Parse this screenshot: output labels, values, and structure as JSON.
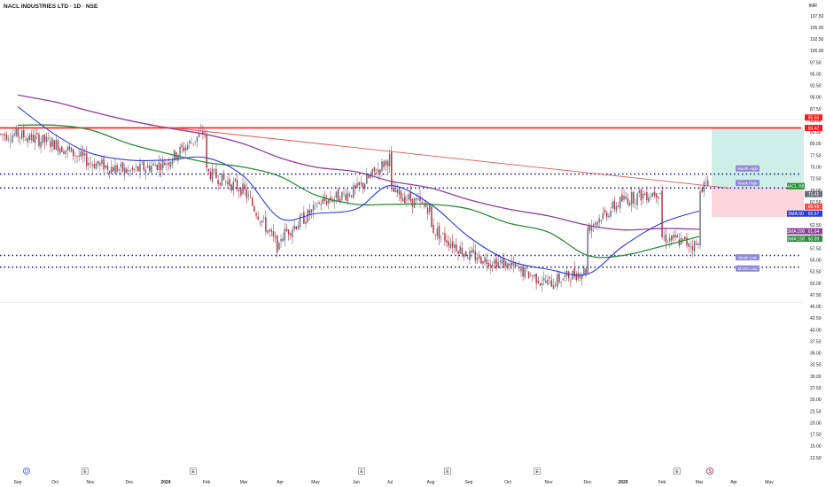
{
  "header": {
    "title": "NACL INDUSTRIES LTD · 1D · NSE",
    "currency": "INR"
  },
  "colors": {
    "candle_up": "#6b7280",
    "candle_down": "#b23a48",
    "sma50": "#2b3bd6",
    "sma100": "#2e8b3a",
    "sma200": "#8e3f99",
    "trendline": "#e05555",
    "hline_red": "#ff1a1a",
    "hline_dotted": "#1a1aa6",
    "target_zone": "#cfeee8",
    "stop_zone": "#fbd5d9"
  },
  "chart_data": {
    "type": "candlestick",
    "title": "NACL INDUSTRIES LTD · 1D · NSE",
    "y_axis": {
      "min": 12.5,
      "max": 107.5,
      "position": "right",
      "ticks": [
        107.5,
        105,
        102.5,
        100,
        97.5,
        95,
        92.5,
        90,
        87.5,
        85,
        82.5,
        80,
        77.5,
        75,
        72.5,
        70,
        67.5,
        65,
        62.5,
        60,
        57.5,
        55,
        52.5,
        50,
        47.5,
        45,
        42.5,
        40,
        37.5,
        35,
        32.5,
        30,
        27.5,
        25,
        22.5,
        20,
        17.5,
        15,
        12.5
      ],
      "tick_labels": [
        "107.50",
        "105.00",
        "102.50",
        "100.00",
        "97.50",
        "95.00",
        "92.50",
        "90.00",
        "87.50",
        "85.00",
        "82.50",
        "80.00",
        "77.50",
        "75.00",
        "72.50",
        "70.00",
        "67.50",
        "65.00",
        "62.50",
        "60.00",
        "57.50",
        "55.00",
        "52.50",
        "50.00",
        "47.50",
        "45.00",
        "42.50",
        "40.00",
        "37.50",
        "35.00",
        "32.50",
        "30.00",
        "27.50",
        "25.00",
        "22.50",
        "20.00",
        "17.50",
        "15.00",
        "12.50"
      ]
    },
    "x_axis": {
      "labels": [
        "Sep",
        "Oct",
        "Nov",
        "Dec",
        "2024",
        "Feb",
        "Mar",
        "Apr",
        "May",
        "Jun",
        "Jul",
        "Aug",
        "Sep",
        "Oct",
        "Nov",
        "Dec",
        "2025",
        "Feb",
        "Mar",
        "Apr",
        "May"
      ],
      "bold": [
        "2024",
        "2025"
      ]
    },
    "price_series": [
      {
        "date": "Sep 2023",
        "price": 82
      },
      {
        "date": "Oct 2023",
        "price": 80
      },
      {
        "date": "Nov 2023",
        "price": 76
      },
      {
        "date": "Dec 2023",
        "price": 74
      },
      {
        "date": "Jan 2024",
        "price": 76
      },
      {
        "date": "Feb 2024",
        "price": 83
      },
      {
        "date": "Feb 2024",
        "price": 74
      },
      {
        "date": "Mar 2024",
        "price": 70
      },
      {
        "date": "Apr 2024",
        "price": 57
      },
      {
        "date": "Apr 2024",
        "price": 60
      },
      {
        "date": "May 2024",
        "price": 66
      },
      {
        "date": "May 2024",
        "price": 67
      },
      {
        "date": "Jun 2024",
        "price": 70
      },
      {
        "date": "Jul 2024",
        "price": 77
      },
      {
        "date": "Jul 2024",
        "price": 70
      },
      {
        "date": "Aug 2024",
        "price": 66
      },
      {
        "date": "Aug 2024",
        "price": 62
      },
      {
        "date": "Sep 2024",
        "price": 56
      },
      {
        "date": "Oct 2024",
        "price": 54
      },
      {
        "date": "Nov 2024",
        "price": 50
      },
      {
        "date": "Dec 2024",
        "price": 53
      },
      {
        "date": "Dec 2024",
        "price": 62
      },
      {
        "date": "Jan 2025",
        "price": 68
      },
      {
        "date": "Feb 2025",
        "price": 70
      },
      {
        "date": "Feb 2025",
        "price": 60
      },
      {
        "date": "Mar 2025",
        "price": 58
      },
      {
        "date": "Mar 2025",
        "price": 71
      }
    ],
    "sma50": [
      {
        "date": "Sep 2023",
        "value": 88
      },
      {
        "date": "Oct 2023",
        "value": 82
      },
      {
        "date": "Nov 2023",
        "value": 78
      },
      {
        "date": "Dec 2023",
        "value": 76.5
      },
      {
        "date": "Jan 2024",
        "value": 76.5
      },
      {
        "date": "Feb 2024",
        "value": 77
      },
      {
        "date": "Mar 2024",
        "value": 73
      },
      {
        "date": "Apr 2024",
        "value": 64
      },
      {
        "date": "May 2024",
        "value": 65
      },
      {
        "date": "Jun 2024",
        "value": 66
      },
      {
        "date": "Jul 2024",
        "value": 71
      },
      {
        "date": "Aug 2024",
        "value": 67
      },
      {
        "date": "Sep 2024",
        "value": 60
      },
      {
        "date": "Oct 2024",
        "value": 55
      },
      {
        "date": "Nov 2024",
        "value": 53
      },
      {
        "date": "Dec 2024",
        "value": 52
      },
      {
        "date": "Jan 2025",
        "value": 58
      },
      {
        "date": "Feb 2025",
        "value": 63
      },
      {
        "date": "Mar 2025",
        "value": 65.57
      }
    ],
    "sma100": [
      {
        "date": "Sep 2023",
        "value": 84
      },
      {
        "date": "Oct 2023",
        "value": 84
      },
      {
        "date": "Nov 2023",
        "value": 83
      },
      {
        "date": "Dec 2023",
        "value": 80
      },
      {
        "date": "Jan 2024",
        "value": 78
      },
      {
        "date": "Feb 2024",
        "value": 76
      },
      {
        "date": "Mar 2024",
        "value": 75
      },
      {
        "date": "Apr 2024",
        "value": 73
      },
      {
        "date": "May 2024",
        "value": 69
      },
      {
        "date": "Jun 2024",
        "value": 67
      },
      {
        "date": "Jul 2024",
        "value": 67
      },
      {
        "date": "Aug 2024",
        "value": 67
      },
      {
        "date": "Sep 2024",
        "value": 66
      },
      {
        "date": "Oct 2024",
        "value": 63
      },
      {
        "date": "Nov 2024",
        "value": 61
      },
      {
        "date": "Dec 2024",
        "value": 56
      },
      {
        "date": "Jan 2025",
        "value": 56
      },
      {
        "date": "Feb 2025",
        "value": 58
      },
      {
        "date": "Mar 2025",
        "value": 60.09
      }
    ],
    "sma200": [
      {
        "date": "Sep 2023",
        "value": 90.5
      },
      {
        "date": "Oct 2023",
        "value": 89
      },
      {
        "date": "Nov 2023",
        "value": 87
      },
      {
        "date": "Dec 2023",
        "value": 85
      },
      {
        "date": "Jan 2024",
        "value": 83.5
      },
      {
        "date": "Feb 2024",
        "value": 82
      },
      {
        "date": "Mar 2024",
        "value": 80
      },
      {
        "date": "Apr 2024",
        "value": 77
      },
      {
        "date": "May 2024",
        "value": 75
      },
      {
        "date": "Jun 2024",
        "value": 74
      },
      {
        "date": "Jul 2024",
        "value": 72
      },
      {
        "date": "Aug 2024",
        "value": 70.5
      },
      {
        "date": "Sep 2024",
        "value": 68
      },
      {
        "date": "Oct 2024",
        "value": 66
      },
      {
        "date": "Nov 2024",
        "value": 64.5
      },
      {
        "date": "Dec 2024",
        "value": 62.5
      },
      {
        "date": "Jan 2025",
        "value": 61.5
      },
      {
        "date": "Feb 2025",
        "value": 61.8
      },
      {
        "date": "Mar 2025",
        "value": 61.64
      }
    ],
    "trendline": {
      "start": {
        "date": "Jan 2024",
        "price": 84
      },
      "end": {
        "date": "Mar 2025",
        "price": 70.5
      }
    },
    "horizontal_levels": [
      {
        "price": 83.42,
        "style": "solid",
        "color": "red"
      },
      {
        "price": 73.5,
        "style": "dotted"
      },
      {
        "price": 70.5,
        "style": "dotted"
      },
      {
        "price": 56.0,
        "style": "dotted"
      },
      {
        "price": 53.5,
        "style": "dotted"
      }
    ],
    "position_zones": {
      "target": {
        "top": 83.42,
        "bottom": 70.5
      },
      "stop": {
        "top": 70.5,
        "bottom": 64.3
      }
    },
    "zone_labels": [
      {
        "text": "Month High",
        "price": 74.7
      },
      {
        "text": "Week High",
        "price": 71.6
      },
      {
        "text": "Week Low",
        "price": 55.6
      },
      {
        "text": "Month Low",
        "price": 53.2
      }
    ],
    "axis_tags": [
      {
        "text": "85.66",
        "price": 85.66,
        "color": "#ff1a1a"
      },
      {
        "text": "83.42",
        "price": 83.42,
        "color": "#ff1a1a"
      },
      {
        "text": "NACL INU",
        "price": 70.9,
        "color": "#1e8f2d"
      },
      {
        "text": "71.41",
        "price": 69.2,
        "color": "#6b6f7a"
      },
      {
        "text": "66.49",
        "price": 66.5,
        "color": "#ff4d4d"
      },
      {
        "text": "SMA:50",
        "value": "65.57",
        "price": 65.0,
        "color": "#2b3bd6"
      },
      {
        "text": "SMA:200",
        "value": "61.64",
        "price": 61.2,
        "color": "#8e3f99"
      },
      {
        "text": "SMA:100",
        "value": "60.09",
        "price": 59.6,
        "color": "#2e8b3a"
      }
    ],
    "events": [
      {
        "type": "dividend",
        "label": "D",
        "x_label": "Sep"
      },
      {
        "type": "earnings",
        "label": "E",
        "x_label": "Nov"
      },
      {
        "type": "earnings",
        "label": "E",
        "x_label": "Feb"
      },
      {
        "type": "earnings",
        "label": "E",
        "x_label": "Jun"
      },
      {
        "type": "earnings",
        "label": "E",
        "x_label": "Aug"
      },
      {
        "type": "earnings",
        "label": "E",
        "x_label": "Nov"
      },
      {
        "type": "earnings",
        "label": "E",
        "x_label": "Feb"
      },
      {
        "type": "split",
        "label": "S",
        "x_label": "Mar"
      }
    ],
    "grid": false,
    "legend": "none"
  }
}
